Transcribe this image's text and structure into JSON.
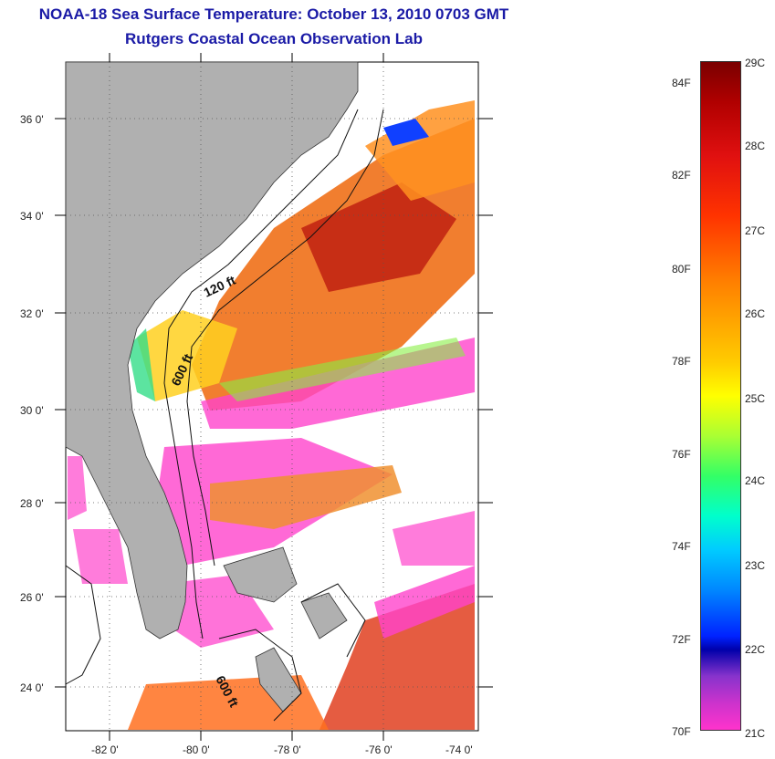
{
  "title": {
    "line1": "NOAA-18 Sea Surface Temperature:  October 13, 2010 0703 GMT",
    "line2": "Rutgers Coastal Ocean Observation Lab"
  },
  "map": {
    "lat_labels": [
      "36 0'",
      "34 0'",
      "32 0'",
      "30 0'",
      "28 0'",
      "26 0'",
      "24 0'"
    ],
    "lon_labels": [
      "-82 0'",
      "-80 0'",
      "-78 0'",
      "-76 0'",
      "-74 0'"
    ],
    "contour_labels": [
      "120 ft",
      "600 ft",
      "600 ft"
    ]
  },
  "legend": {
    "fahrenheit": [
      "84F",
      "82F",
      "80F",
      "78F",
      "76F",
      "74F",
      "72F",
      "70F"
    ],
    "celsius": [
      "29C",
      "28C",
      "27C",
      "26C",
      "25C",
      "24C",
      "23C",
      "22C",
      "21C"
    ]
  },
  "colors": {
    "title": "#1a1aa6",
    "land": "#b0b0b0"
  }
}
